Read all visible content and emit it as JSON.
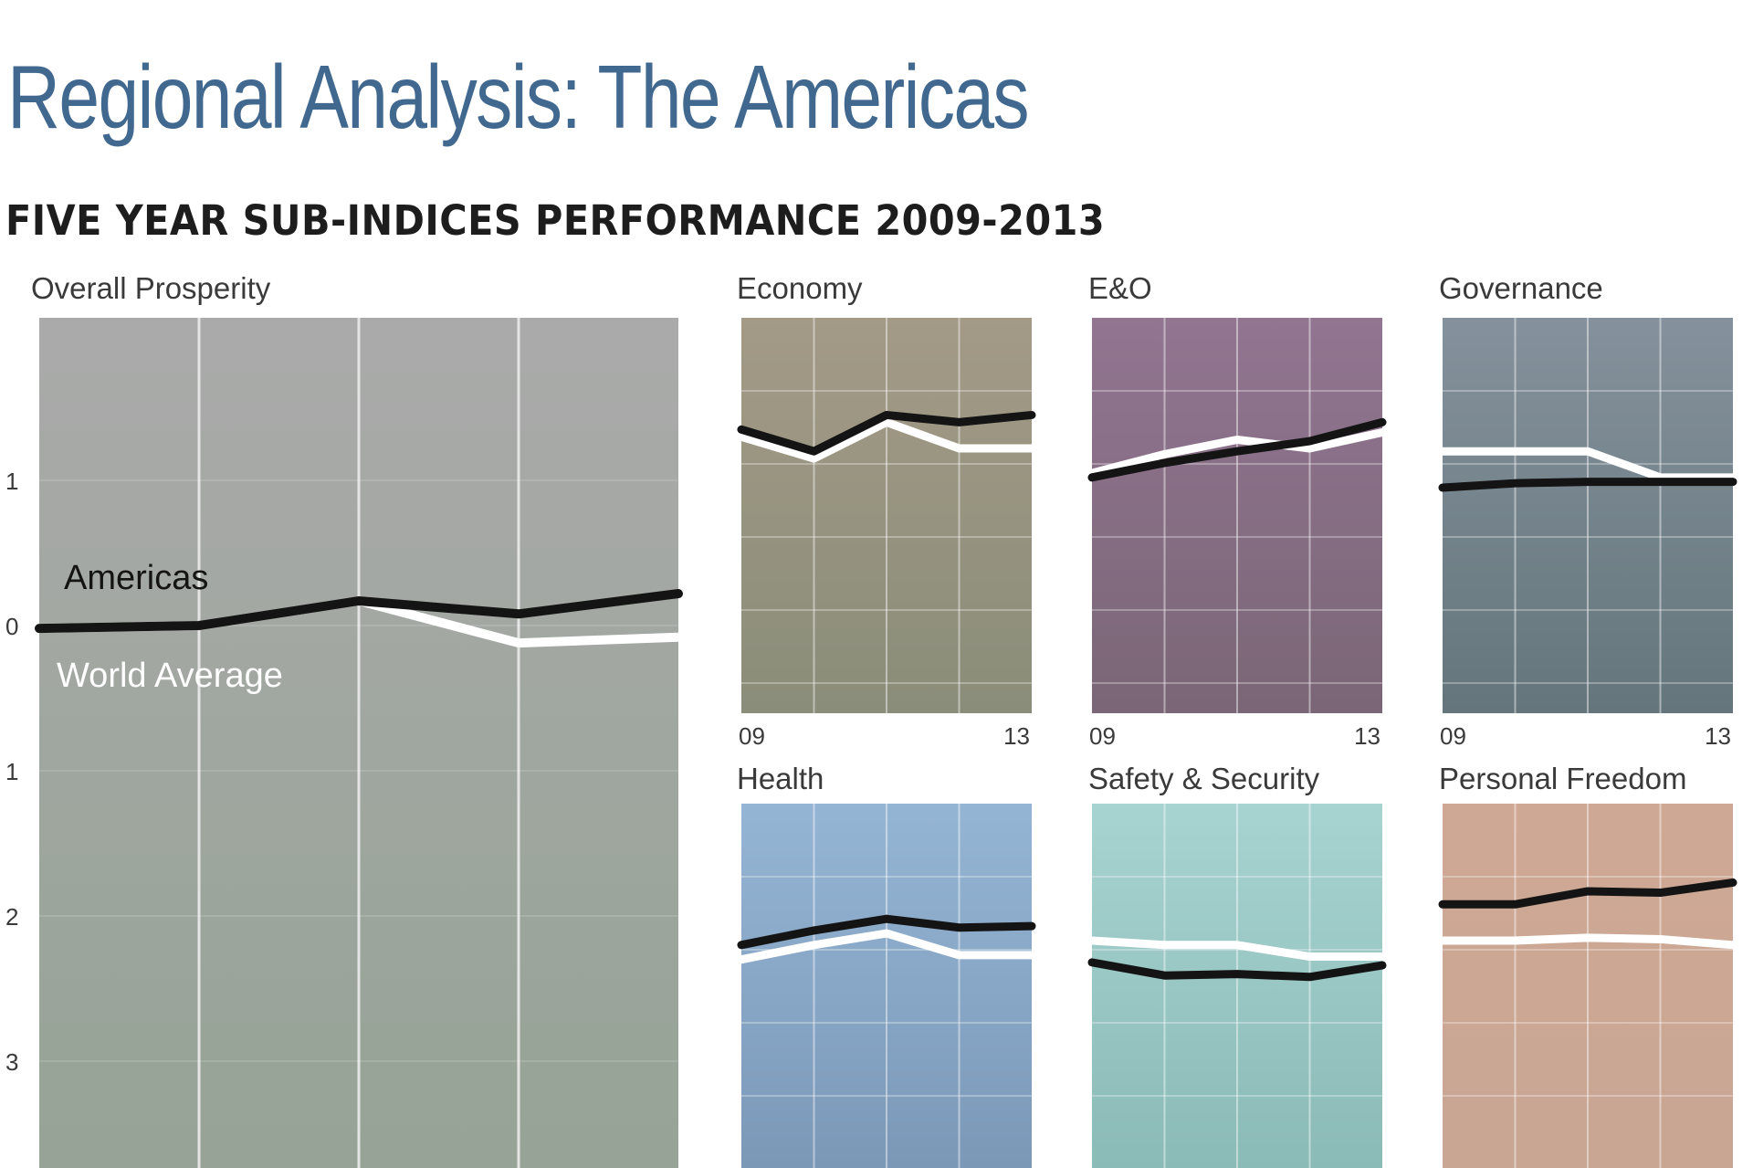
{
  "header": {
    "title": "Regional Analysis: The Americas",
    "subtitle": "FIVE YEAR SUB-INDICES PERFORMANCE 2009-2013"
  },
  "colors": {
    "americas": "#141414",
    "world": "#ffffff"
  },
  "chart_data": [
    {
      "type": "line",
      "title": "Overall Prosperity",
      "x": [
        2009,
        2010,
        2011,
        2012,
        2013
      ],
      "ylim": [
        -3.8,
        2.1
      ],
      "yticks": [
        1,
        0,
        -1,
        -2,
        -3
      ],
      "ytick_labels": [
        "1",
        "0",
        "1",
        "2",
        "3"
      ],
      "grid": true,
      "background": [
        "#aaaaaa",
        "#96a396"
      ],
      "series": [
        {
          "name": "Americas",
          "values": [
            -0.02,
            0.0,
            0.17,
            0.08,
            0.22
          ]
        },
        {
          "name": "World Average",
          "values": [
            -0.02,
            0.0,
            0.17,
            -0.12,
            -0.08
          ]
        }
      ]
    },
    {
      "type": "line",
      "title": "Economy",
      "x": [
        2009,
        2010,
        2011,
        2012,
        2013
      ],
      "xtick_labels": [
        "09",
        "13"
      ],
      "ylim": [
        -3.8,
        2.1
      ],
      "grid": true,
      "background": [
        "#a39a87",
        "#8a8d79"
      ],
      "series": [
        {
          "name": "Americas",
          "values": [
            1.35,
            1.2,
            1.45,
            1.4,
            1.45
          ]
        },
        {
          "name": "World Average",
          "values": [
            1.3,
            1.15,
            1.4,
            1.22,
            1.22
          ]
        }
      ]
    },
    {
      "type": "line",
      "title": "E&O",
      "x": [
        2009,
        2010,
        2011,
        2012,
        2013
      ],
      "xtick_labels": [
        "09",
        "13"
      ],
      "ylim": [
        -3.8,
        2.1
      ],
      "grid": true,
      "background": [
        "#927591",
        "#7a6676"
      ],
      "series": [
        {
          "name": "Americas",
          "values": [
            1.02,
            1.12,
            1.2,
            1.27,
            1.4
          ]
        },
        {
          "name": "World Average",
          "values": [
            1.05,
            1.18,
            1.28,
            1.22,
            1.33
          ]
        }
      ]
    },
    {
      "type": "line",
      "title": "Governance",
      "x": [
        2009,
        2010,
        2011,
        2012,
        2013
      ],
      "xtick_labels": [
        "09",
        "13"
      ],
      "ylim": [
        -3.8,
        2.1
      ],
      "grid": true,
      "background": [
        "#85919c",
        "#64767b"
      ],
      "series": [
        {
          "name": "Americas",
          "values": [
            0.95,
            0.98,
            0.99,
            0.99,
            0.99
          ]
        },
        {
          "name": "World Average",
          "values": [
            1.2,
            1.2,
            1.2,
            1.02,
            1.02
          ]
        }
      ]
    },
    {
      "type": "line",
      "title": "Health",
      "x": [
        2009,
        2010,
        2011,
        2012,
        2013
      ],
      "ylim": [
        -3.8,
        2.1
      ],
      "grid": true,
      "background": [
        "#95b5d4",
        "#7b98b7"
      ],
      "series": [
        {
          "name": "Americas",
          "values": [
            -2.2,
            -2.1,
            -2.02,
            -2.08,
            -2.07
          ]
        },
        {
          "name": "World Average",
          "values": [
            -2.3,
            -2.2,
            -2.12,
            -2.27,
            -2.27
          ]
        }
      ]
    },
    {
      "type": "line",
      "title": "Safety & Security",
      "x": [
        2009,
        2010,
        2011,
        2012,
        2013
      ],
      "ylim": [
        -3.8,
        2.1
      ],
      "grid": true,
      "background": [
        "#a7d3d1",
        "#8bbbb6"
      ],
      "series": [
        {
          "name": "Americas",
          "values": [
            -2.32,
            -2.41,
            -2.4,
            -2.42,
            -2.34
          ]
        },
        {
          "name": "World Average",
          "values": [
            -2.17,
            -2.2,
            -2.2,
            -2.28,
            -2.28
          ]
        }
      ]
    },
    {
      "type": "line",
      "title": "Personal Freedom",
      "x": [
        2009,
        2010,
        2011,
        2012,
        2013
      ],
      "ylim": [
        -3.8,
        2.1
      ],
      "grid": true,
      "background": [
        "#cfa895",
        "#c8a693"
      ],
      "series": [
        {
          "name": "Americas",
          "values": [
            -1.92,
            -1.92,
            -1.83,
            -1.84,
            -1.77
          ]
        },
        {
          "name": "World Average",
          "values": [
            -2.17,
            -2.17,
            -2.15,
            -2.16,
            -2.2
          ]
        }
      ]
    }
  ]
}
